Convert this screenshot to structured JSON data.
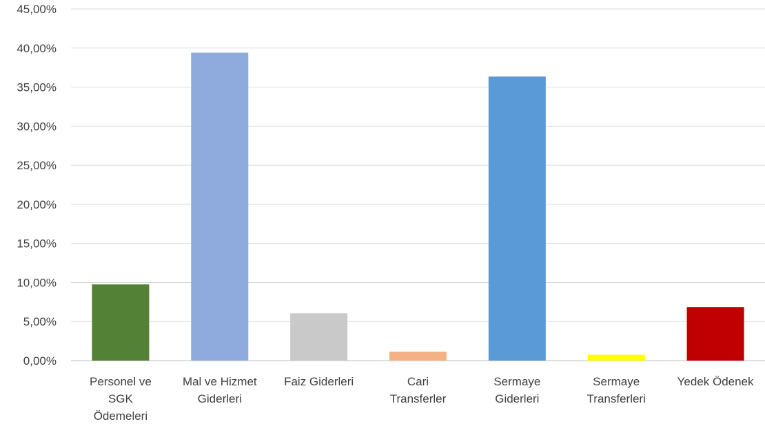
{
  "chart_data": {
    "type": "bar",
    "categories": [
      [
        "Personel ve",
        "SGK",
        "Ödemeleri"
      ],
      [
        "Mal ve Hizmet",
        "Giderleri"
      ],
      [
        "Faiz Giderleri"
      ],
      [
        "Cari",
        "Transferler"
      ],
      [
        "Sermaye",
        "Giderleri"
      ],
      [
        "Sermaye",
        "Transferleri"
      ],
      [
        "Yedek Ödenek"
      ]
    ],
    "values": [
      9.75,
      39.4,
      6.05,
      1.15,
      36.35,
      0.75,
      6.85
    ],
    "colors": [
      "#538135",
      "#8faadc",
      "#c9c9c9",
      "#f4b183",
      "#5b9bd5",
      "#ffff00",
      "#c00000"
    ],
    "ylim": [
      0,
      45
    ],
    "y_ticks": [
      "0,00%",
      "5,00%",
      "10,00%",
      "15,00%",
      "20,00%",
      "25,00%",
      "30,00%",
      "35,00%",
      "40,00%",
      "45,00%"
    ],
    "grid": true,
    "legend": "none"
  }
}
